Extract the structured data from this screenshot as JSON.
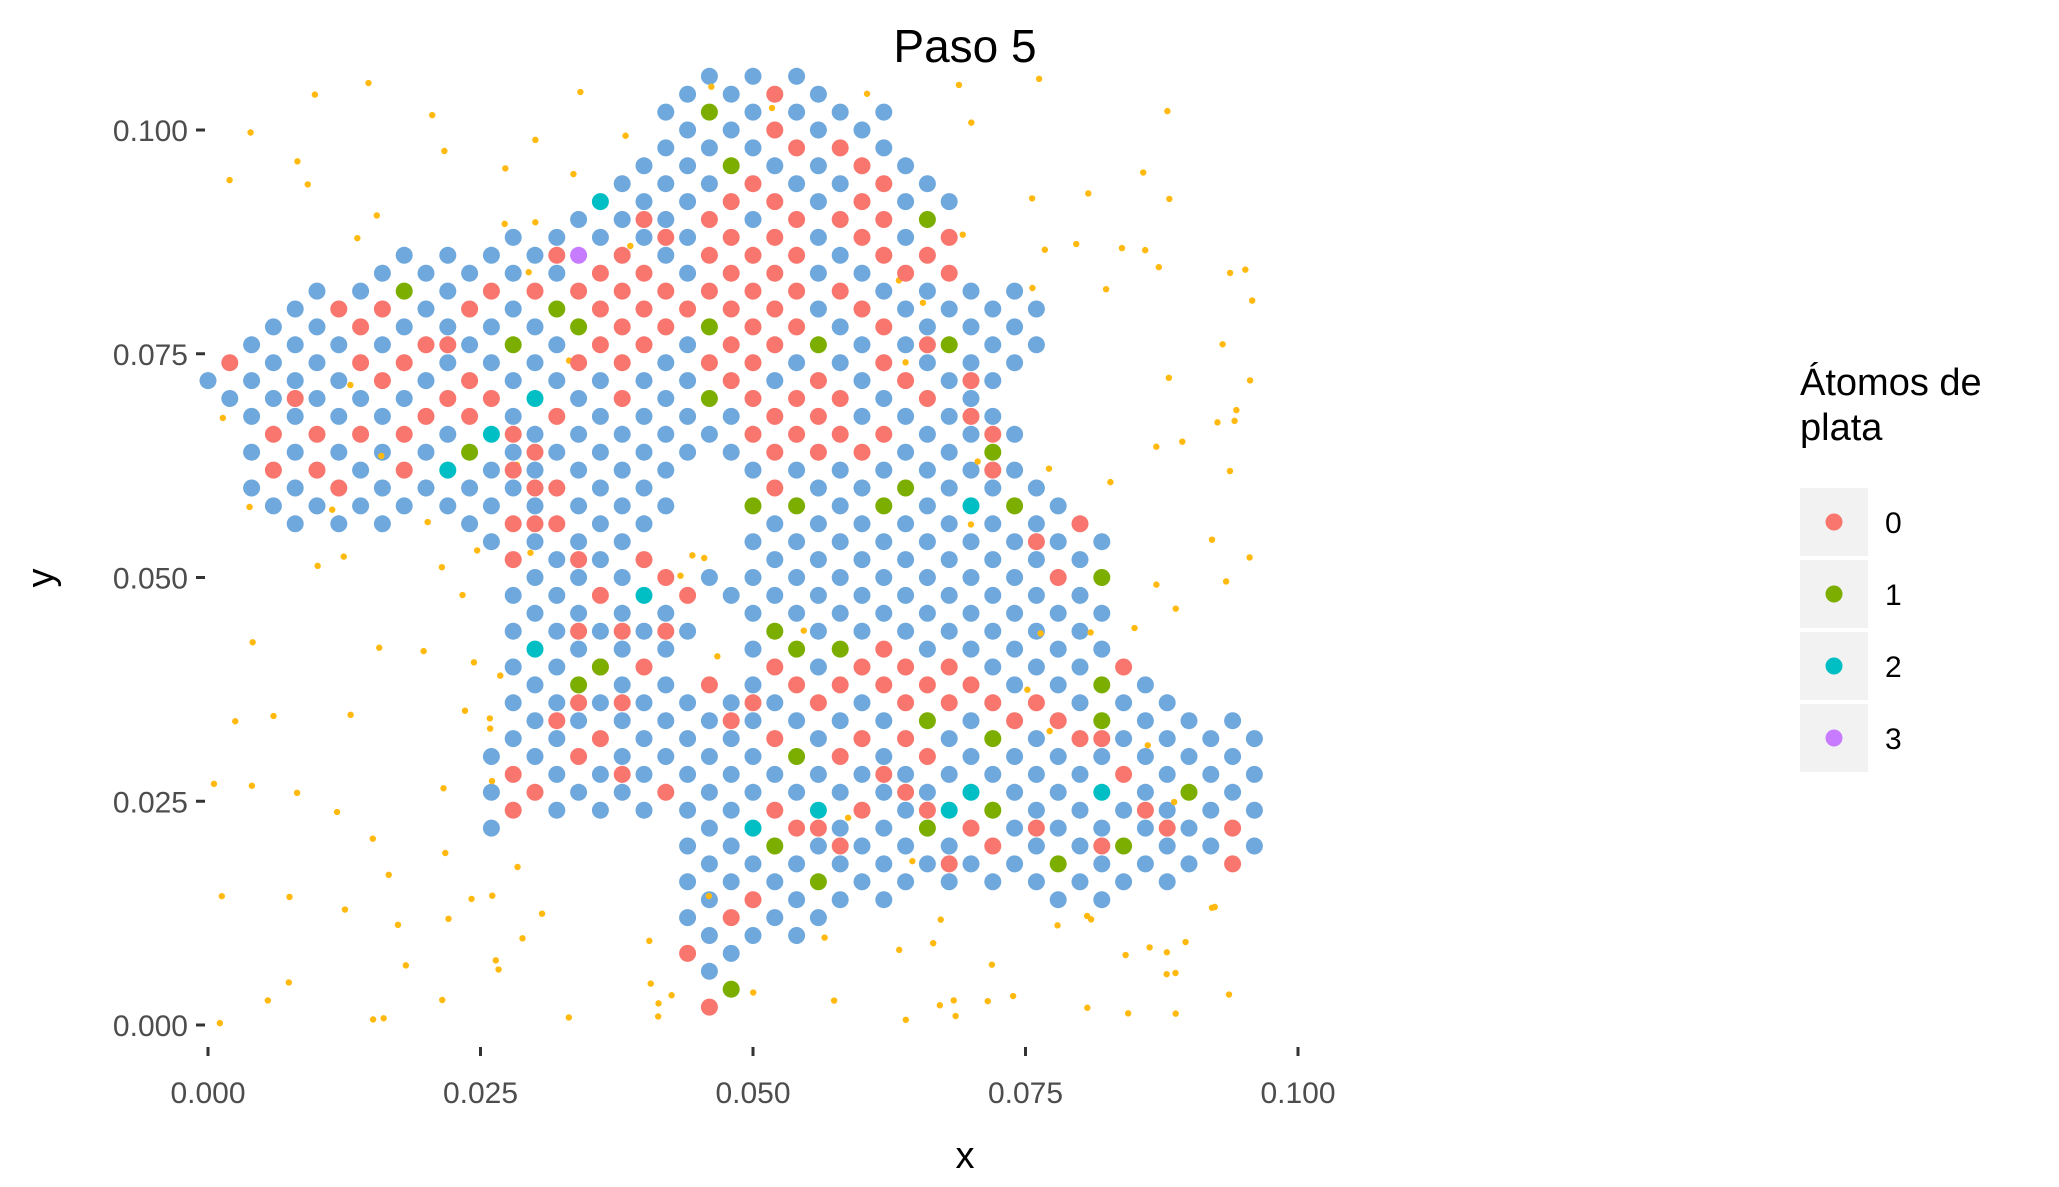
{
  "chart_data": {
    "type": "scatter",
    "title": "Paso  5",
    "xlabel": "x",
    "ylabel": "y",
    "xlim": [
      -0.004,
      0.1
    ],
    "ylim": [
      -0.0025,
      0.107
    ],
    "x_ticks": [
      0,
      0.025,
      0.05,
      0.075,
      0.1
    ],
    "x_tick_labels": [
      "0.000",
      "0.025",
      "0.050",
      "0.075",
      "0.100"
    ],
    "y_ticks": [
      0,
      0.025,
      0.05,
      0.075,
      0.1
    ],
    "y_tick_labels": [
      "0.000",
      "0.025",
      "0.050",
      "0.075",
      "0.100"
    ],
    "grid": false,
    "legend": {
      "title_lines": [
        "Átomos de",
        "plata"
      ],
      "position": "right",
      "entries": [
        {
          "label": "0",
          "color": "#F8766D"
        },
        {
          "label": "1",
          "color": "#7CAE00"
        },
        {
          "label": "2",
          "color": "#00BFC4"
        },
        {
          "label": "3",
          "color": "#C77CFF"
        }
      ]
    },
    "lattice_color": "#6FA8DC",
    "atom_color": "#FFB90F",
    "series": [
      {
        "name": "0",
        "color": "#F8766D",
        "points": [
          [
            0.002,
            0.074
          ],
          [
            0.006,
            0.066
          ],
          [
            0.006,
            0.062
          ],
          [
            0.01,
            0.066
          ],
          [
            0.012,
            0.08
          ],
          [
            0.014,
            0.078
          ],
          [
            0.014,
            0.074
          ],
          [
            0.014,
            0.066
          ],
          [
            0.016,
            0.08
          ],
          [
            0.016,
            0.072
          ],
          [
            0.018,
            0.074
          ],
          [
            0.018,
            0.066
          ],
          [
            0.018,
            0.062
          ],
          [
            0.02,
            0.076
          ],
          [
            0.02,
            0.068
          ],
          [
            0.022,
            0.076
          ],
          [
            0.022,
            0.07
          ],
          [
            0.024,
            0.072
          ],
          [
            0.024,
            0.08
          ],
          [
            0.026,
            0.082
          ],
          [
            0.026,
            0.07
          ],
          [
            0.028,
            0.066
          ],
          [
            0.028,
            0.062
          ],
          [
            0.028,
            0.056
          ],
          [
            0.028,
            0.052
          ],
          [
            0.03,
            0.064
          ],
          [
            0.03,
            0.06
          ],
          [
            0.03,
            0.056
          ],
          [
            0.03,
            0.082
          ],
          [
            0.032,
            0.06
          ],
          [
            0.032,
            0.056
          ],
          [
            0.032,
            0.068
          ],
          [
            0.032,
            0.086
          ],
          [
            0.034,
            0.082
          ],
          [
            0.034,
            0.074
          ],
          [
            0.036,
            0.084
          ],
          [
            0.036,
            0.08
          ],
          [
            0.036,
            0.076
          ],
          [
            0.038,
            0.086
          ],
          [
            0.038,
            0.082
          ],
          [
            0.038,
            0.078
          ],
          [
            0.038,
            0.074
          ],
          [
            0.038,
            0.07
          ],
          [
            0.04,
            0.09
          ],
          [
            0.04,
            0.084
          ],
          [
            0.04,
            0.08
          ],
          [
            0.04,
            0.076
          ],
          [
            0.042,
            0.088
          ],
          [
            0.042,
            0.082
          ],
          [
            0.042,
            0.078
          ],
          [
            0.044,
            0.08
          ],
          [
            0.046,
            0.09
          ],
          [
            0.046,
            0.086
          ],
          [
            0.046,
            0.082
          ],
          [
            0.046,
            0.074
          ],
          [
            0.048,
            0.092
          ],
          [
            0.048,
            0.088
          ],
          [
            0.048,
            0.084
          ],
          [
            0.048,
            0.08
          ],
          [
            0.048,
            0.076
          ],
          [
            0.048,
            0.072
          ],
          [
            0.05,
            0.094
          ],
          [
            0.05,
            0.086
          ],
          [
            0.05,
            0.082
          ],
          [
            0.05,
            0.078
          ],
          [
            0.05,
            0.074
          ],
          [
            0.05,
            0.07
          ],
          [
            0.05,
            0.066
          ],
          [
            0.052,
            0.104
          ],
          [
            0.052,
            0.1
          ],
          [
            0.052,
            0.092
          ],
          [
            0.052,
            0.088
          ],
          [
            0.052,
            0.084
          ],
          [
            0.052,
            0.08
          ],
          [
            0.052,
            0.076
          ],
          [
            0.052,
            0.068
          ],
          [
            0.052,
            0.064
          ],
          [
            0.052,
            0.06
          ],
          [
            0.054,
            0.098
          ],
          [
            0.054,
            0.09
          ],
          [
            0.054,
            0.086
          ],
          [
            0.054,
            0.082
          ],
          [
            0.054,
            0.078
          ],
          [
            0.054,
            0.07
          ],
          [
            0.054,
            0.066
          ],
          [
            0.056,
            0.072
          ],
          [
            0.056,
            0.068
          ],
          [
            0.056,
            0.064
          ],
          [
            0.058,
            0.098
          ],
          [
            0.058,
            0.09
          ],
          [
            0.058,
            0.082
          ],
          [
            0.058,
            0.07
          ],
          [
            0.058,
            0.066
          ],
          [
            0.06,
            0.096
          ],
          [
            0.06,
            0.092
          ],
          [
            0.06,
            0.088
          ],
          [
            0.06,
            0.08
          ],
          [
            0.06,
            0.064
          ],
          [
            0.062,
            0.094
          ],
          [
            0.062,
            0.09
          ],
          [
            0.062,
            0.086
          ],
          [
            0.062,
            0.078
          ],
          [
            0.062,
            0.074
          ],
          [
            0.062,
            0.066
          ],
          [
            0.064,
            0.084
          ],
          [
            0.064,
            0.072
          ],
          [
            0.066,
            0.086
          ],
          [
            0.066,
            0.076
          ],
          [
            0.066,
            0.07
          ],
          [
            0.068,
            0.088
          ],
          [
            0.068,
            0.084
          ],
          [
            0.07,
            0.072
          ],
          [
            0.07,
            0.068
          ],
          [
            0.072,
            0.066
          ],
          [
            0.072,
            0.062
          ],
          [
            0.076,
            0.054
          ],
          [
            0.078,
            0.05
          ],
          [
            0.08,
            0.056
          ],
          [
            0.008,
            0.07
          ],
          [
            0.01,
            0.062
          ],
          [
            0.046,
            0.038
          ],
          [
            0.048,
            0.034
          ],
          [
            0.05,
            0.036
          ],
          [
            0.052,
            0.04
          ],
          [
            0.052,
            0.032
          ],
          [
            0.054,
            0.038
          ],
          [
            0.056,
            0.036
          ],
          [
            0.058,
            0.038
          ],
          [
            0.058,
            0.03
          ],
          [
            0.06,
            0.04
          ],
          [
            0.06,
            0.032
          ],
          [
            0.062,
            0.042
          ],
          [
            0.062,
            0.038
          ],
          [
            0.064,
            0.04
          ],
          [
            0.064,
            0.036
          ],
          [
            0.064,
            0.032
          ],
          [
            0.066,
            0.038
          ],
          [
            0.066,
            0.03
          ],
          [
            0.068,
            0.04
          ],
          [
            0.068,
            0.036
          ],
          [
            0.07,
            0.038
          ],
          [
            0.072,
            0.036
          ],
          [
            0.074,
            0.034
          ],
          [
            0.076,
            0.036
          ],
          [
            0.078,
            0.034
          ],
          [
            0.08,
            0.032
          ],
          [
            0.082,
            0.032
          ],
          [
            0.084,
            0.04
          ],
          [
            0.084,
            0.028
          ],
          [
            0.086,
            0.024
          ],
          [
            0.088,
            0.022
          ],
          [
            0.094,
            0.022
          ],
          [
            0.094,
            0.018
          ],
          [
            0.082,
            0.02
          ],
          [
            0.076,
            0.022
          ],
          [
            0.072,
            0.02
          ],
          [
            0.07,
            0.022
          ],
          [
            0.068,
            0.018
          ],
          [
            0.066,
            0.024
          ],
          [
            0.064,
            0.026
          ],
          [
            0.062,
            0.028
          ],
          [
            0.06,
            0.024
          ],
          [
            0.058,
            0.02
          ],
          [
            0.056,
            0.022
          ],
          [
            0.054,
            0.022
          ],
          [
            0.052,
            0.024
          ],
          [
            0.05,
            0.014
          ],
          [
            0.048,
            0.012
          ],
          [
            0.044,
            0.008
          ],
          [
            0.046,
            0.002
          ],
          [
            0.042,
            0.026
          ],
          [
            0.038,
            0.028
          ],
          [
            0.036,
            0.032
          ],
          [
            0.034,
            0.03
          ],
          [
            0.032,
            0.034
          ],
          [
            0.034,
            0.036
          ],
          [
            0.036,
            0.04
          ],
          [
            0.038,
            0.044
          ],
          [
            0.038,
            0.036
          ],
          [
            0.04,
            0.04
          ],
          [
            0.042,
            0.044
          ],
          [
            0.04,
            0.052
          ],
          [
            0.042,
            0.05
          ],
          [
            0.044,
            0.048
          ],
          [
            0.034,
            0.052
          ],
          [
            0.036,
            0.048
          ],
          [
            0.034,
            0.044
          ],
          [
            0.028,
            0.028
          ],
          [
            0.028,
            0.024
          ],
          [
            0.03,
            0.026
          ],
          [
            0.024,
            0.068
          ],
          [
            0.012,
            0.06
          ]
        ]
      },
      {
        "name": "1",
        "color": "#7CAE00",
        "points": [
          [
            0.018,
            0.082
          ],
          [
            0.024,
            0.064
          ],
          [
            0.028,
            0.076
          ],
          [
            0.032,
            0.08
          ],
          [
            0.034,
            0.078
          ],
          [
            0.046,
            0.102
          ],
          [
            0.048,
            0.096
          ],
          [
            0.046,
            0.078
          ],
          [
            0.046,
            0.07
          ],
          [
            0.056,
            0.076
          ],
          [
            0.066,
            0.09
          ],
          [
            0.068,
            0.076
          ],
          [
            0.072,
            0.064
          ],
          [
            0.074,
            0.058
          ],
          [
            0.064,
            0.06
          ],
          [
            0.062,
            0.058
          ],
          [
            0.054,
            0.058
          ],
          [
            0.05,
            0.058
          ],
          [
            0.082,
            0.05
          ],
          [
            0.052,
            0.044
          ],
          [
            0.054,
            0.042
          ],
          [
            0.058,
            0.042
          ],
          [
            0.036,
            0.04
          ],
          [
            0.034,
            0.038
          ],
          [
            0.066,
            0.034
          ],
          [
            0.072,
            0.032
          ],
          [
            0.082,
            0.038
          ],
          [
            0.082,
            0.034
          ],
          [
            0.054,
            0.03
          ],
          [
            0.072,
            0.024
          ],
          [
            0.066,
            0.022
          ],
          [
            0.052,
            0.02
          ],
          [
            0.056,
            0.016
          ],
          [
            0.078,
            0.018
          ],
          [
            0.084,
            0.02
          ],
          [
            0.09,
            0.026
          ],
          [
            0.048,
            0.004
          ]
        ]
      },
      {
        "name": "2",
        "color": "#00BFC4",
        "points": [
          [
            0.036,
            0.092
          ],
          [
            0.03,
            0.07
          ],
          [
            0.026,
            0.066
          ],
          [
            0.022,
            0.062
          ],
          [
            0.04,
            0.048
          ],
          [
            0.03,
            0.042
          ],
          [
            0.07,
            0.058
          ],
          [
            0.082,
            0.026
          ],
          [
            0.056,
            0.024
          ],
          [
            0.068,
            0.024
          ],
          [
            0.07,
            0.026
          ],
          [
            0.05,
            0.022
          ]
        ]
      },
      {
        "name": "3",
        "color": "#C77CFF",
        "points": [
          [
            0.034,
            0.086
          ]
        ]
      }
    ]
  }
}
